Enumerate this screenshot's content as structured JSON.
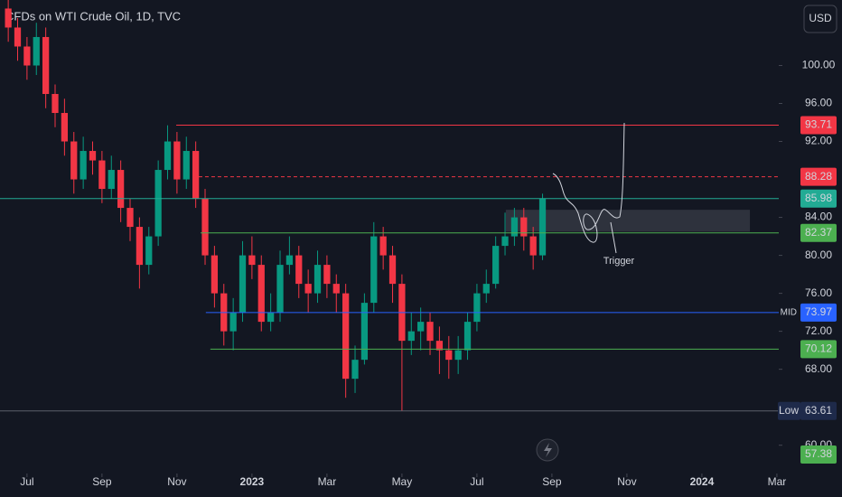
{
  "chart_data": {
    "type": "candlestick",
    "title": "CFDs on WTI Crude Oil, 1D, TVC",
    "currency": "USD",
    "up_color": "#089981",
    "down_color": "#f23645",
    "x": [
      -0.5,
      -0.25,
      0,
      0.25,
      0.5,
      0.75,
      1,
      1.25,
      1.5,
      1.75,
      2,
      2.25,
      2.5,
      2.75,
      3,
      3.25,
      3.5,
      3.75,
      4,
      4.25,
      4.5,
      4.75,
      5,
      5.25,
      5.5,
      5.75,
      6,
      6.25,
      6.5,
      6.75,
      7,
      7.25,
      7.5,
      7.75,
      8,
      8.25,
      8.5,
      8.75,
      9,
      9.25,
      9.5,
      9.75,
      10,
      10.25,
      10.5,
      10.75,
      11,
      11.25,
      11.5,
      11.75,
      12,
      12.25,
      12.5,
      12.75,
      13,
      13.25,
      13.5,
      13.75
    ],
    "open": [
      106,
      104,
      102,
      100,
      103,
      97,
      95,
      92,
      88,
      91,
      90,
      87,
      89,
      85,
      83,
      79,
      82,
      89,
      92,
      88,
      91,
      86,
      80,
      76,
      72,
      74,
      80,
      79,
      73,
      74,
      79,
      80,
      77,
      76,
      79,
      77,
      76,
      67,
      69,
      75,
      82,
      80,
      77,
      71,
      72,
      73,
      71,
      70,
      69,
      70,
      73,
      76,
      77,
      81,
      82,
      84,
      82,
      80
    ],
    "high": [
      107,
      105,
      103,
      104.5,
      104,
      98,
      96.5,
      93,
      92.5,
      92,
      91,
      90.5,
      90,
      86,
      84,
      83,
      90,
      93.7,
      93,
      92.5,
      92,
      87,
      81,
      77,
      75.5,
      81.5,
      82,
      80,
      76,
      80.5,
      82,
      81,
      78.5,
      80.5,
      80,
      78,
      77,
      70.5,
      76,
      83.5,
      83,
      81,
      78,
      74,
      74.5,
      74,
      72.5,
      71.5,
      71.5,
      74,
      77,
      78.5,
      82,
      84.5,
      85,
      85,
      83,
      86.5
    ],
    "low": [
      102.5,
      100.5,
      98.5,
      99,
      95.5,
      93.5,
      90.5,
      86.5,
      87,
      88.5,
      85.5,
      86,
      83.5,
      81.5,
      76.5,
      78,
      81,
      88,
      86.5,
      87,
      85,
      79,
      74.5,
      70.5,
      70,
      73,
      77.5,
      72,
      72,
      73,
      78,
      75.5,
      74,
      75,
      75.5,
      74,
      65,
      65.5,
      68.5,
      74,
      78.5,
      75,
      63.61,
      69.5,
      70,
      69.5,
      67.5,
      67,
      67.5,
      69,
      72,
      75,
      76.5,
      80,
      81,
      80.5,
      78.5,
      79.5
    ],
    "close": [
      104,
      102,
      100,
      103,
      97,
      95,
      92,
      88,
      91,
      90,
      87,
      89,
      85,
      83,
      79,
      82,
      89,
      92,
      88,
      91,
      86,
      80,
      76,
      72,
      74,
      80,
      79,
      73,
      74,
      79,
      80,
      77,
      76,
      79,
      77,
      76,
      67,
      69,
      75,
      82,
      80,
      77,
      71,
      72,
      73,
      71,
      70,
      69,
      70,
      73,
      76,
      77,
      81,
      82,
      84,
      82,
      80,
      86
    ],
    "xlim": [
      -0.72,
      20.05
    ],
    "xticks": [
      {
        "value": 0,
        "label": "Jul"
      },
      {
        "value": 2,
        "label": "Sep"
      },
      {
        "value": 4,
        "label": "Nov"
      },
      {
        "value": 6,
        "label": "2023"
      },
      {
        "value": 8,
        "label": "Mar"
      },
      {
        "value": 10,
        "label": "May"
      },
      {
        "value": 12,
        "label": "Jul"
      },
      {
        "value": 14,
        "label": "Sep"
      },
      {
        "value": 16,
        "label": "Nov"
      },
      {
        "value": 18,
        "label": "2024"
      },
      {
        "value": 20,
        "label": "Mar"
      }
    ],
    "ylim": [
      57.4,
      106.9
    ],
    "yticks": [
      {
        "value": 100,
        "label": "100.00"
      },
      {
        "value": 96,
        "label": "96.00"
      },
      {
        "value": 92,
        "label": "92.00"
      },
      {
        "value": 84,
        "label": "84.00"
      },
      {
        "value": 80,
        "label": "80.00"
      },
      {
        "value": 76,
        "label": "76.00"
      },
      {
        "value": 72,
        "label": "72.00"
      },
      {
        "value": 68,
        "label": "68.00"
      },
      {
        "value": 60,
        "label": "60.00"
      }
    ],
    "levels": [
      {
        "value": 93.71,
        "color": "#f23645",
        "style": "solid",
        "start": 3.98
      },
      {
        "value": 88.28,
        "color": "#f23645",
        "style": "dashed",
        "start": 4.58
      },
      {
        "value": 85.98,
        "color": "#22ab94",
        "style": "solid"
      },
      {
        "value": 82.37,
        "color": "#4caf50",
        "style": "solid",
        "start": 4.63
      },
      {
        "value": 73.97,
        "color": "#2962ff",
        "style": "solid",
        "start": 4.77,
        "tag": "MID"
      },
      {
        "value": 70.12,
        "color": "#4caf50",
        "style": "solid",
        "start": 4.89
      },
      {
        "value": 63.61,
        "color": "#5d606b",
        "style": "solid",
        "tag": "Low",
        "label_color": "#1e2a4a"
      },
      {
        "value": 57.38,
        "color": "#4caf50",
        "style": "none"
      }
    ],
    "zone": {
      "top": 84.8,
      "bottom": 82.5,
      "start": 12.77,
      "end": 19.28
    },
    "annotation": "Trigger"
  }
}
